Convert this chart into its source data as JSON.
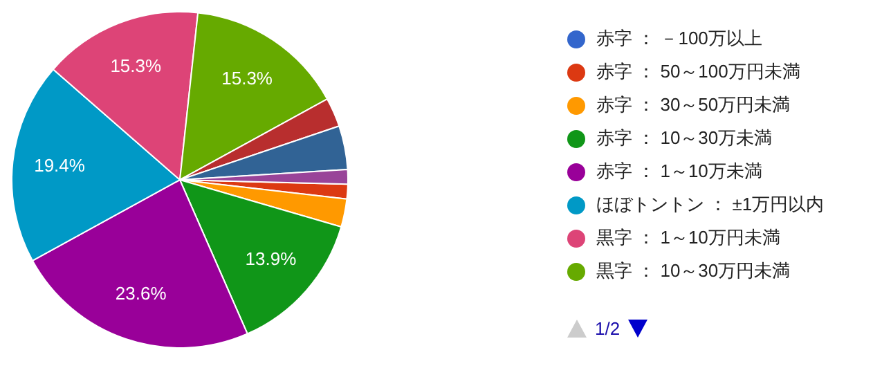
{
  "chart_data": {
    "type": "pie",
    "legend": "right",
    "categories": [
      "赤字 ： －100万以上",
      "赤字 ： 50～100万円未満",
      "赤字 ： 30～50万円未満",
      "赤字 ： 10～30万未満",
      "赤字 ： 1～10万未満",
      "ほぼトントン ： ±1万円以内",
      "黒字 ： 1～10万円未満",
      "黒字 ： 10～30万円未満",
      null,
      null,
      null
    ],
    "values": [
      0,
      1.4,
      2.7,
      13.9,
      23.6,
      19.4,
      15.3,
      15.3,
      2.8,
      4.2,
      1.4
    ],
    "value_labels": [
      null,
      null,
      null,
      "13.9%",
      "23.6%",
      "19.4%",
      "15.3%",
      "15.3%",
      null,
      null,
      null
    ],
    "colors": [
      "#3366cc",
      "#dc3912",
      "#ff9900",
      "#109618",
      "#990099",
      "#0099c6",
      "#dd4477",
      "#66aa00",
      "#b82e2e",
      "#316395",
      "#994499"
    ],
    "annotations": [
      "1/2"
    ]
  }
}
